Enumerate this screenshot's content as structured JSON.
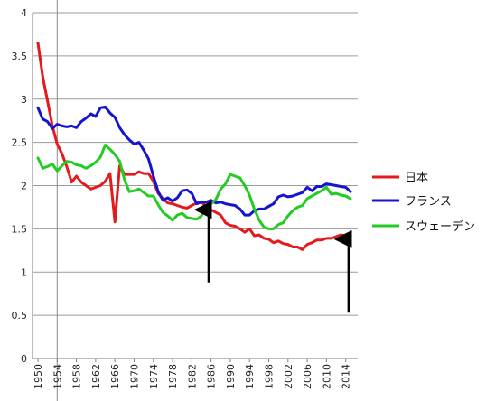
{
  "chart_data": {
    "type": "line",
    "title": "",
    "xlabel": "",
    "ylabel": "",
    "xlim": [
      1950,
      2015
    ],
    "ylim": [
      0,
      4
    ],
    "y_ticks": [
      "0",
      "0.5",
      "1",
      "1.5",
      "2",
      "2.5",
      "3",
      "3.5",
      "4"
    ],
    "x_ticks": [
      "1950",
      "1954",
      "1958",
      "1962",
      "1966",
      "1970",
      "1974",
      "1978",
      "1982",
      "1986",
      "1990",
      "1994",
      "1998",
      "2002",
      "2006",
      "2010",
      "2014"
    ],
    "grid": "horizontal",
    "legend_position": "right",
    "x": [
      1950,
      1951,
      1952,
      1953,
      1954,
      1955,
      1956,
      1957,
      1958,
      1959,
      1960,
      1961,
      1962,
      1963,
      1964,
      1965,
      1966,
      1967,
      1968,
      1969,
      1970,
      1971,
      1972,
      1973,
      1974,
      1975,
      1976,
      1977,
      1978,
      1979,
      1980,
      1981,
      1982,
      1983,
      1984,
      1985,
      1986,
      1987,
      1988,
      1989,
      1990,
      1991,
      1992,
      1993,
      1994,
      1995,
      1996,
      1997,
      1998,
      1999,
      2000,
      2001,
      2002,
      2003,
      2004,
      2005,
      2006,
      2007,
      2008,
      2009,
      2010,
      2011,
      2012,
      2013,
      2014,
      2015
    ],
    "series": [
      {
        "name": "日本",
        "color": "#e41a1c",
        "values": [
          3.65,
          3.26,
          2.98,
          2.69,
          2.48,
          2.37,
          2.22,
          2.04,
          2.11,
          2.04,
          2.0,
          1.96,
          1.98,
          2.0,
          2.05,
          2.14,
          1.58,
          2.23,
          2.13,
          2.13,
          2.13,
          2.16,
          2.14,
          2.14,
          2.05,
          1.91,
          1.85,
          1.8,
          1.79,
          1.77,
          1.75,
          1.74,
          1.77,
          1.8,
          1.81,
          1.76,
          1.72,
          1.69,
          1.66,
          1.57,
          1.54,
          1.53,
          1.5,
          1.46,
          1.5,
          1.42,
          1.43,
          1.39,
          1.38,
          1.34,
          1.36,
          1.33,
          1.32,
          1.29,
          1.29,
          1.26,
          1.32,
          1.34,
          1.37,
          1.37,
          1.39,
          1.39,
          1.41,
          1.43,
          1.42,
          1.45
        ]
      },
      {
        "name": "フランス",
        "color": "#1515d0",
        "values": [
          2.9,
          2.77,
          2.74,
          2.66,
          2.71,
          2.69,
          2.68,
          2.69,
          2.67,
          2.74,
          2.78,
          2.83,
          2.8,
          2.9,
          2.91,
          2.84,
          2.79,
          2.67,
          2.59,
          2.53,
          2.48,
          2.5,
          2.41,
          2.31,
          2.11,
          1.93,
          1.83,
          1.86,
          1.82,
          1.86,
          1.94,
          1.95,
          1.91,
          1.79,
          1.81,
          1.81,
          1.83,
          1.8,
          1.81,
          1.79,
          1.78,
          1.77,
          1.73,
          1.66,
          1.66,
          1.71,
          1.73,
          1.73,
          1.76,
          1.79,
          1.87,
          1.89,
          1.87,
          1.88,
          1.9,
          1.92,
          1.98,
          1.94,
          1.99,
          1.99,
          2.02,
          2.01,
          2.0,
          1.99,
          1.98,
          1.93
        ]
      },
      {
        "name": "スウェーデン",
        "color": "#22cc22",
        "values": [
          2.32,
          2.2,
          2.22,
          2.25,
          2.17,
          2.23,
          2.28,
          2.27,
          2.24,
          2.23,
          2.2,
          2.23,
          2.27,
          2.33,
          2.47,
          2.42,
          2.36,
          2.28,
          2.07,
          1.93,
          1.94,
          1.96,
          1.92,
          1.88,
          1.88,
          1.78,
          1.69,
          1.65,
          1.6,
          1.66,
          1.68,
          1.63,
          1.62,
          1.61,
          1.65,
          1.74,
          1.79,
          1.84,
          1.96,
          2.02,
          2.13,
          2.11,
          2.09,
          2.0,
          1.89,
          1.73,
          1.6,
          1.52,
          1.5,
          1.5,
          1.55,
          1.57,
          1.65,
          1.71,
          1.75,
          1.77,
          1.85,
          1.88,
          1.91,
          1.94,
          1.98,
          1.9,
          1.91,
          1.89,
          1.88,
          1.85
        ]
      }
    ],
    "annotations": [
      {
        "type": "arrow",
        "direction": "up",
        "x": 1985.5,
        "y_from": 0.88,
        "y_to": 1.72
      },
      {
        "type": "arrow",
        "direction": "up",
        "x": 2014.6,
        "y_from": 0.53,
        "y_to": 1.38
      }
    ]
  }
}
